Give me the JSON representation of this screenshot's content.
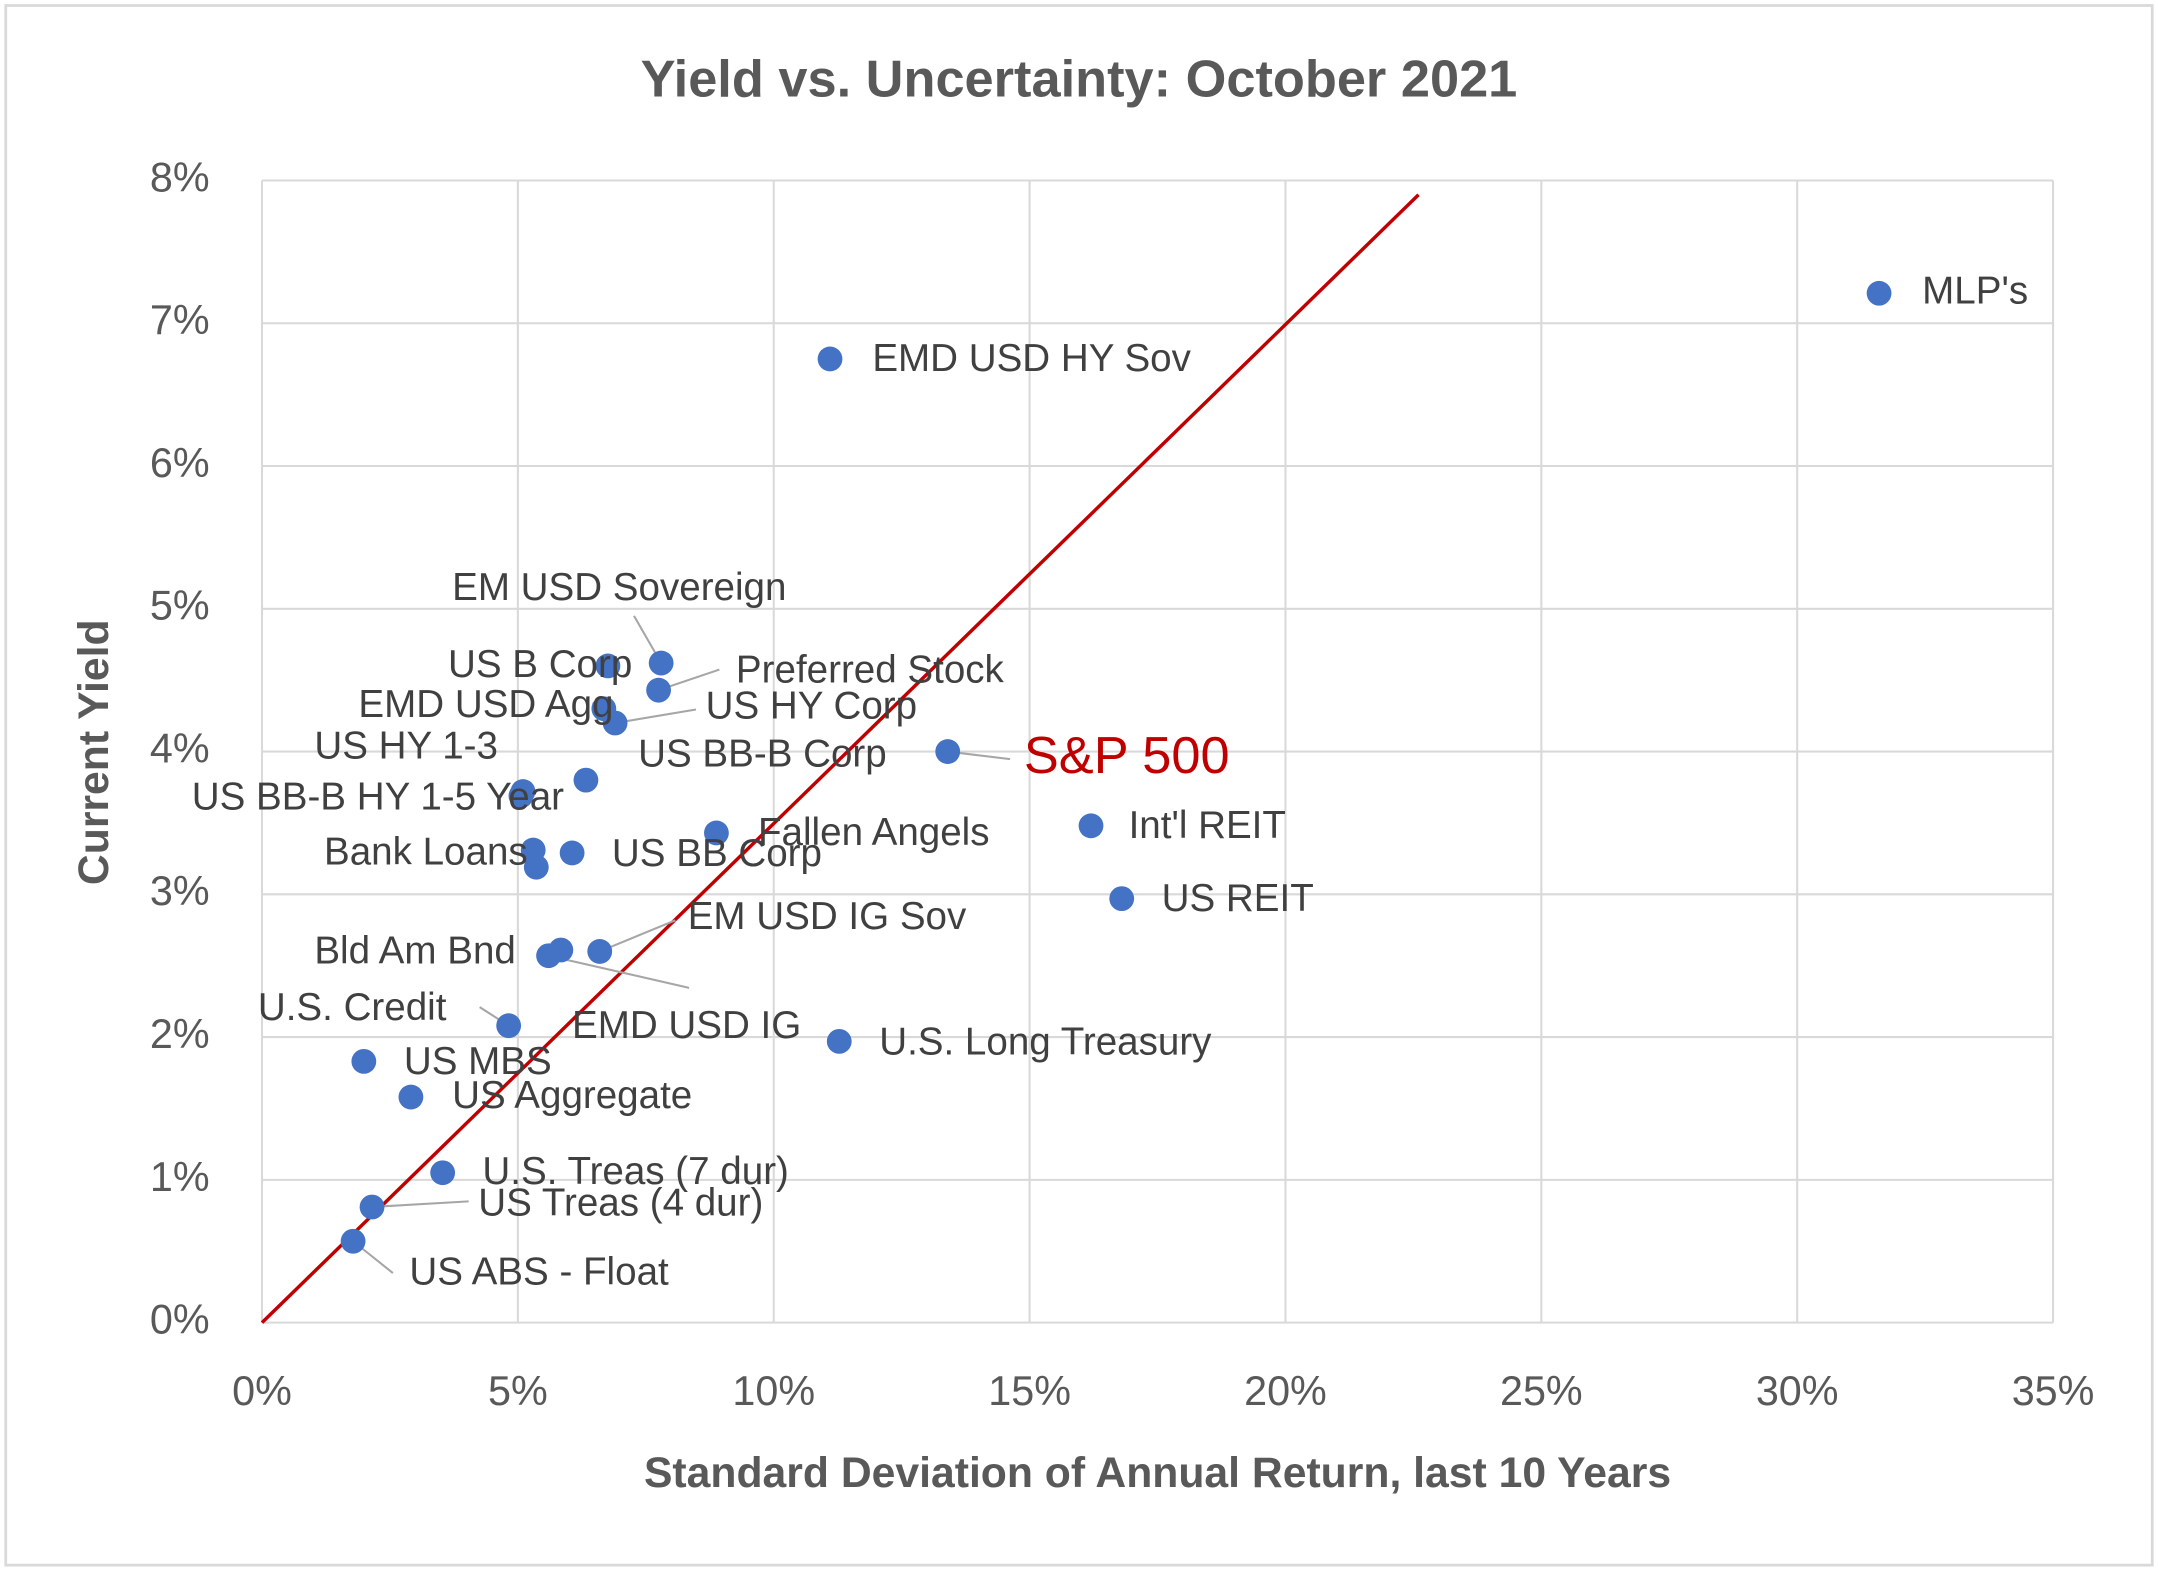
{
  "chart_data": {
    "type": "scatter",
    "title": "Yield vs. Uncertainty: October 2021",
    "x_label": "Standard Deviation of Annual Return, last 10 Years",
    "y_label": "Current Yield",
    "x": [
      31.6,
      11.1,
      7.8,
      6.76,
      7.75,
      6.68,
      6.9,
      13.4,
      5.1,
      6.33,
      5.06,
      8.88,
      16.2,
      5.3,
      5.36,
      6.06,
      16.8,
      6.6,
      5.84,
      5.6,
      4.82,
      11.28,
      1.99,
      2.91,
      3.53,
      2.15,
      1.78
    ],
    "values": [
      7.21,
      6.75,
      4.62,
      4.6,
      4.43,
      4.3,
      4.2,
      4.0,
      3.72,
      3.8,
      3.69,
      3.43,
      3.48,
      3.31,
      3.19,
      3.29,
      2.97,
      2.6,
      2.61,
      2.57,
      2.08,
      1.97,
      1.83,
      1.58,
      1.05,
      0.81,
      0.57
    ],
    "labels": [
      "MLP's",
      "EMD USD HY Sov",
      "EM USD Sovereign",
      "US B Corp",
      "Preferred Stock",
      "EMD USD Agg",
      "US HY Corp",
      "S&P 500",
      "US HY 1-3",
      "US BB-B Corp",
      "US BB-B HY 1-5 Year",
      "Fallen Angels",
      "Int'l REIT",
      "Bank Loans",
      null,
      "US BB Corp",
      "US REIT",
      "EM USD IG Sov",
      "Bld Am Bnd",
      "EMD USD IG",
      "U.S. Credit",
      "U.S. Long Treasury",
      "US MBS",
      "US Aggregate",
      "U.S. Treas (7 dur)",
      "US Treas (4 dur)",
      "US ABS - Float"
    ],
    "color": "#4472c4",
    "highlight_index": 7,
    "highlight_color": "#c00000",
    "trendline": {
      "x": [
        0,
        22.6
      ],
      "y": [
        0,
        7.9
      ],
      "color": "#c00000"
    },
    "xlim": [
      0,
      35
    ],
    "ylim": [
      0,
      8
    ],
    "xticks": [
      {
        "value": 0,
        "label": "0%"
      },
      {
        "value": 5,
        "label": "5%"
      },
      {
        "value": 10,
        "label": "10%"
      },
      {
        "value": 15,
        "label": "15%"
      },
      {
        "value": 20,
        "label": "20%"
      },
      {
        "value": 25,
        "label": "25%"
      },
      {
        "value": 30,
        "label": "30%"
      },
      {
        "value": 35,
        "label": "35%"
      }
    ],
    "yticks": [
      {
        "value": 0,
        "label": "0%"
      },
      {
        "value": 1,
        "label": "1%"
      },
      {
        "value": 2,
        "label": "2%"
      },
      {
        "value": 3,
        "label": "3%"
      },
      {
        "value": 4,
        "label": "4%"
      },
      {
        "value": 5,
        "label": "5%"
      },
      {
        "value": 6,
        "label": "6%"
      },
      {
        "value": 7,
        "label": "7%"
      },
      {
        "value": 8,
        "label": "8%"
      }
    ],
    "grid": true
  }
}
